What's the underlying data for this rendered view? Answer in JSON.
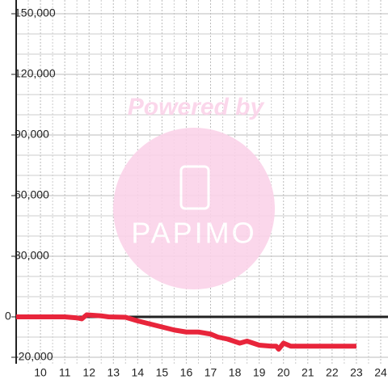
{
  "chart_data": {
    "type": "line",
    "watermark": {
      "line1": "Powered by",
      "line2": "PAPIMO"
    },
    "x": [
      9,
      10,
      11,
      11.5,
      11.7,
      11.9,
      12.5,
      12.8,
      13.5,
      14,
      14.5,
      15,
      15.5,
      16,
      16.5,
      17,
      17.3,
      17.7,
      18.2,
      18.5,
      19,
      19.5,
      19.7,
      19.8,
      20,
      20.3,
      21,
      22,
      23
    ],
    "series": [
      {
        "color": "#e8253b",
        "values": [
          0,
          0,
          0,
          -500,
          -1000,
          1000,
          500,
          0,
          -200,
          -2000,
          -3500,
          -5000,
          -6500,
          -7500,
          -7500,
          -8500,
          -10000,
          -11000,
          -13000,
          -12000,
          -14000,
          -14500,
          -14500,
          -16000,
          -13000,
          -14500,
          -14500,
          -14500,
          -14500
        ]
      }
    ],
    "xlim": [
      9,
      24.3
    ],
    "ylim": [
      -20000,
      150000
    ],
    "xticks": [
      10,
      11,
      12,
      13,
      14,
      15,
      16,
      17,
      18,
      19,
      20,
      21,
      22,
      23,
      24
    ],
    "yticks": [
      {
        "value": -20000,
        "label": "-20,000"
      },
      0,
      {
        "value": 30000,
        "label": "30,000"
      },
      {
        "value": 60000,
        "label": "60,000"
      },
      {
        "value": 90000,
        "label": "90,000"
      },
      {
        "value": 120000,
        "label": "120,000"
      },
      {
        "value": 150000,
        "label": "150,000"
      }
    ],
    "y_minor_ticks": [
      -10000,
      10000,
      20000,
      40000,
      50000,
      70000,
      80000,
      100000,
      110000,
      130000,
      140000
    ],
    "x_minor_ticks": [
      9.5,
      10.5,
      11.5,
      12.5,
      13.5,
      14.5,
      15.5,
      16.5,
      17.5,
      18.5,
      19.5,
      20.5,
      21.5,
      22.5,
      23.5
    ],
    "grid": true
  }
}
